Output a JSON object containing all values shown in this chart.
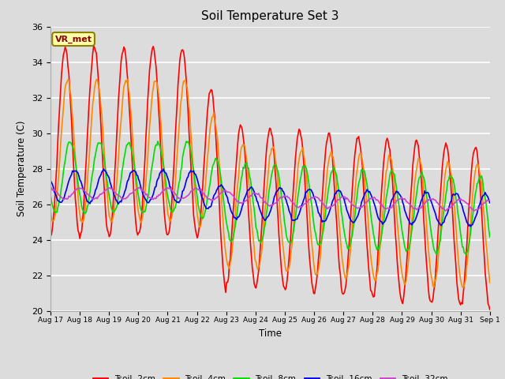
{
  "title": "Soil Temperature Set 3",
  "xlabel": "Time",
  "ylabel": "Soil Temperature (C)",
  "ylim": [
    20,
    36
  ],
  "yticks": [
    20,
    22,
    24,
    26,
    28,
    30,
    32,
    34,
    36
  ],
  "fig_bg": "#dcdcdc",
  "plot_bg": "#dcdcdc",
  "annotation_text": "VR_met",
  "annotation_bg": "#ffffaa",
  "annotation_border": "#8b8000",
  "series_colors": {
    "Tsoil -2cm": "#ff0000",
    "Tsoil -4cm": "#ff8800",
    "Tsoil -8cm": "#00dd00",
    "Tsoil -16cm": "#0000ee",
    "Tsoil -32cm": "#cc44cc"
  },
  "lw": 1.2,
  "num_points": 480
}
